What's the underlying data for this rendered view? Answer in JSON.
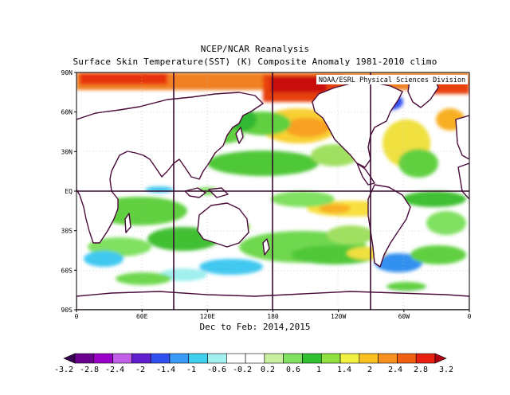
{
  "title": "NCEP/NCAR Reanalysis",
  "subtitle": "Surface Skin Temperature(SST) (K) Composite Anomaly 1981-2010 climo",
  "credit": "NOAA/ESRL Physical Sciences Division",
  "period": "Dec to Feb: 2014,2015",
  "chart_data": {
    "type": "heatmap",
    "variable": "Surface Skin Temperature anomaly",
    "units": "K",
    "lon_range": [
      0,
      360
    ],
    "lat_range": [
      -90,
      90
    ],
    "y_ticks": [
      "90N",
      "60N",
      "30N",
      "EQ",
      "30S",
      "60S",
      "90S"
    ],
    "x_ticks": [
      "0",
      "60E",
      "120E",
      "180",
      "120W",
      "60W",
      "0"
    ],
    "colorbar": {
      "levels": [
        "-3.2",
        "-2.8",
        "-2.4",
        "-2",
        "-1.4",
        "-1",
        "-0.6",
        "-0.2",
        "0.2",
        "0.6",
        "1",
        "1.4",
        "2",
        "2.4",
        "2.8",
        "3.2"
      ],
      "colors": [
        "#3a0050",
        "#6a0090",
        "#9b00c8",
        "#c060e8",
        "#6020d0",
        "#3050f0",
        "#3a9af8",
        "#40d0f0",
        "#a0f0f0",
        "#ffffff",
        "#ffffff",
        "#c8f0a0",
        "#80e060",
        "#30c030",
        "#90e040",
        "#f0f040",
        "#f8c020",
        "#f89020",
        "#f06010",
        "#e82010",
        "#b00010"
      ]
    }
  }
}
